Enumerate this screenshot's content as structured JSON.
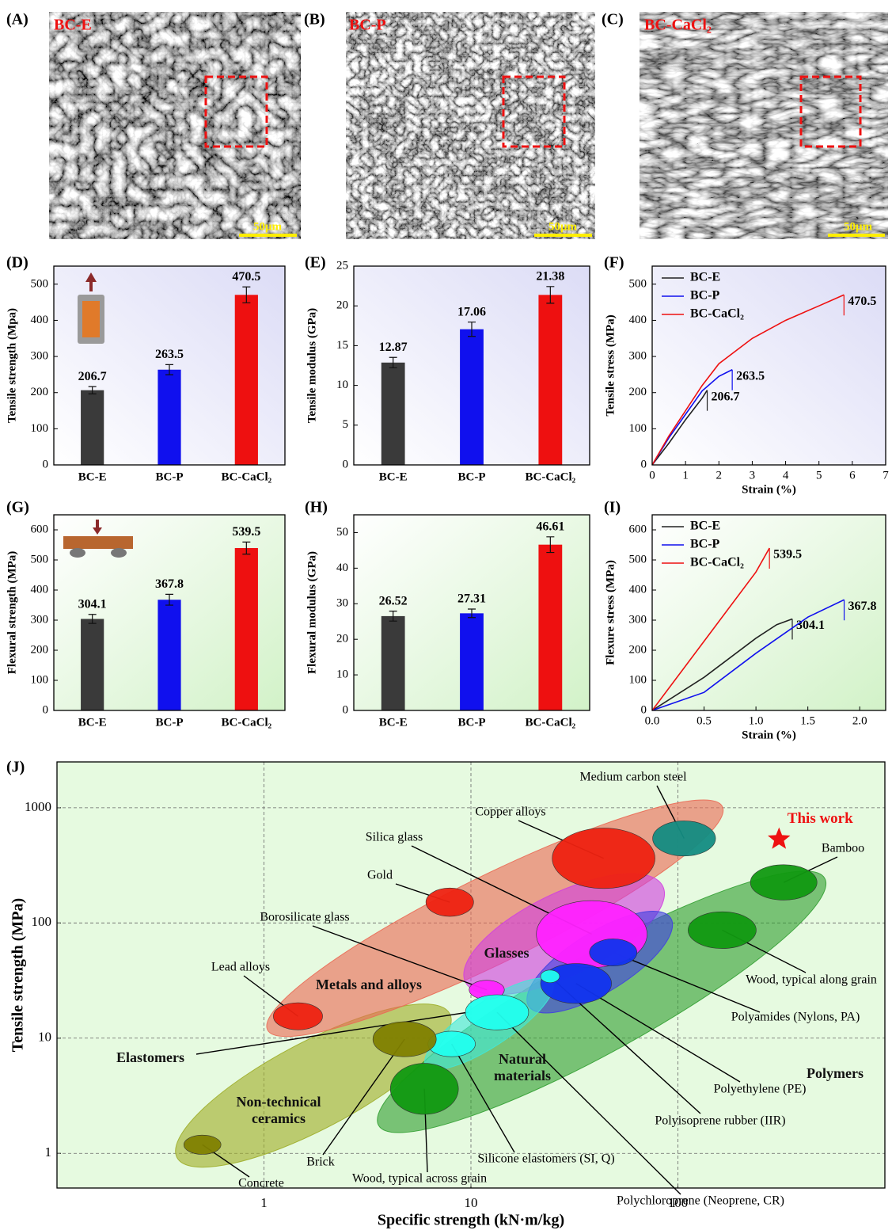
{
  "images": [
    {
      "panel": "(A)",
      "label": "BC-E",
      "scale_bar": "50μm"
    },
    {
      "panel": "(B)",
      "label": "BC-P",
      "scale_bar": "50μm"
    },
    {
      "panel": "(C)",
      "label": "BC-CaCl₂",
      "scale_bar": "50μm"
    }
  ],
  "chart_data": [
    {
      "type": "bar",
      "panel": "(D)",
      "ylabel": "Tensile strength (Mpa)",
      "categories": [
        "BC-E",
        "BC-P",
        "BC-CaCl₂"
      ],
      "values": [
        206.7,
        263.5,
        470.5
      ],
      "errors": [
        10,
        14,
        22
      ],
      "colors": [
        "#3a3a3a",
        "#1010ee",
        "#ee1010"
      ],
      "ylim": [
        0,
        550
      ],
      "yticks": [
        0,
        100,
        200,
        300,
        400,
        500
      ]
    },
    {
      "type": "bar",
      "panel": "(E)",
      "ylabel": "Tensile modulus (GPa)",
      "categories": [
        "BC-E",
        "BC-P",
        "BC-CaCl₂"
      ],
      "values": [
        12.87,
        17.06,
        21.38
      ],
      "errors": [
        0.65,
        0.9,
        1.05
      ],
      "colors": [
        "#3a3a3a",
        "#1010ee",
        "#ee1010"
      ],
      "ylim": [
        0,
        25
      ],
      "yticks": [
        0,
        5,
        10,
        15,
        20,
        25
      ]
    },
    {
      "type": "line",
      "panel": "(F)",
      "xlabel": "Strain (%)",
      "ylabel": "Tensile stress (MPa)",
      "xlim": [
        0,
        7
      ],
      "xticks": [
        0,
        1,
        2,
        3,
        4,
        5,
        6,
        7
      ],
      "ylim": [
        0,
        550
      ],
      "yticks": [
        0,
        100,
        200,
        300,
        400,
        500
      ],
      "legend": "upper left",
      "series": [
        {
          "name": "BC-E",
          "color": "#222222",
          "x": [
            0,
            0.5,
            1,
            1.5,
            1.65
          ],
          "values": [
            0,
            60,
            125,
            185,
            206.7
          ]
        },
        {
          "name": "BC-P",
          "color": "#1010ee",
          "x": [
            0,
            0.5,
            1,
            1.5,
            2,
            2.4
          ],
          "values": [
            0,
            75,
            140,
            205,
            245,
            263.5
          ]
        },
        {
          "name": "BC-CaCl₂",
          "color": "#ee1010",
          "x": [
            0,
            0.5,
            1,
            1.5,
            2,
            3,
            4,
            5,
            5.75
          ],
          "values": [
            0,
            80,
            150,
            220,
            280,
            350,
            400,
            440,
            470.5
          ]
        }
      ]
    },
    {
      "type": "bar",
      "panel": "(G)",
      "ylabel": "Flexural strength (MPa)",
      "categories": [
        "BC-E",
        "BC-P",
        "BC-CaCl₂"
      ],
      "values": [
        304.1,
        367.8,
        539.5
      ],
      "errors": [
        15,
        18,
        20
      ],
      "colors": [
        "#3a3a3a",
        "#1010ee",
        "#ee1010"
      ],
      "ylim": [
        0,
        650
      ],
      "yticks": [
        0,
        100,
        200,
        300,
        400,
        500,
        600
      ]
    },
    {
      "type": "bar",
      "panel": "(H)",
      "ylabel": "Flexural modulus (GPa)",
      "categories": [
        "BC-E",
        "BC-P",
        "BC-CaCl₂"
      ],
      "values": [
        26.52,
        27.31,
        46.61
      ],
      "errors": [
        1.4,
        1.2,
        2.2
      ],
      "colors": [
        "#3a3a3a",
        "#1010ee",
        "#ee1010"
      ],
      "ylim": [
        0,
        55
      ],
      "yticks": [
        0,
        10,
        20,
        30,
        40,
        50
      ]
    },
    {
      "type": "line",
      "panel": "(I)",
      "xlabel": "Strain (%)",
      "ylabel": "Flexure stress (MPa)",
      "xlim": [
        0,
        2.25
      ],
      "xticks": [
        {
          "value": 0,
          "label": "0.0"
        },
        0.5,
        {
          "value": 1,
          "label": "1.0"
        },
        1.5,
        {
          "value": 2,
          "label": "2.0"
        }
      ],
      "ylim": [
        0,
        650
      ],
      "yticks": [
        0,
        100,
        200,
        300,
        400,
        500,
        600
      ],
      "legend": "upper left",
      "series": [
        {
          "name": "BC-E",
          "color": "#222222",
          "x": [
            0,
            0.5,
            1,
            1.2,
            1.35
          ],
          "values": [
            0,
            110,
            240,
            285,
            304.1
          ]
        },
        {
          "name": "BC-P",
          "color": "#1010ee",
          "x": [
            0,
            0.5,
            1,
            1.5,
            1.85
          ],
          "values": [
            0,
            60,
            190,
            310,
            367.8
          ]
        },
        {
          "name": "BC-CaCl₂",
          "color": "#ee1010",
          "x": [
            0,
            0.5,
            1,
            1.13
          ],
          "values": [
            0,
            230,
            460,
            539.5
          ]
        }
      ]
    },
    {
      "type": "ashby",
      "panel": "(J)",
      "xlabel": "Specific strength (kN·m/kg)",
      "ylabel": "Tensile strength (MPa)",
      "xlim": [
        0.1,
        1000
      ],
      "xticks": [
        1,
        10,
        100
      ],
      "ylim": [
        0.5,
        2500
      ],
      "yticks": [
        1,
        10,
        100,
        1000
      ],
      "log_x": true,
      "log_y": true,
      "grid": true,
      "families": [
        {
          "name": "Non-technical ceramics",
          "color": "#9fae2a",
          "from": [
            0.38,
            0.92
          ],
          "to": [
            7.9,
            16.3
          ]
        },
        {
          "name": "Natural materials",
          "color": "#33a033",
          "from": [
            3.58,
            1.75
          ],
          "to": [
            512,
            244
          ]
        },
        {
          "name": "Metals and alloys",
          "color": "#ea6a55",
          "from": [
            1.04,
            11.8
          ],
          "to": [
            164,
            1024
          ]
        },
        {
          "name": "Glasses",
          "color": "#d040e0",
          "from": [
            9.4,
            30.7
          ],
          "to": [
            84.6,
            208
          ]
        },
        {
          "name": "Polymers",
          "color": "#4040e0",
          "from": [
            19,
            19
          ],
          "to": [
            92.4,
            110
          ]
        },
        {
          "name": "Elastomers",
          "color": "#40e8d8",
          "from": [
            6.06,
            5.77
          ],
          "to": [
            24.7,
            30.7
          ]
        }
      ],
      "materials": [
        {
          "name": "Medium carbon steel",
          "color": "#138c82",
          "x": [
            75.5,
            152
          ],
          "y": [
            381,
            769
          ]
        },
        {
          "name": "Copper alloys",
          "color": "#ee2211",
          "x": [
            24.7,
            77.5
          ],
          "y": [
            199,
            666
          ]
        },
        {
          "name": "Silica glass",
          "color": "#ff22ff",
          "x": [
            20.7,
            71
          ],
          "y": [
            41,
            156
          ]
        },
        {
          "name": "Gold",
          "color": "#ee2211",
          "x": [
            6.06,
            10.3
          ],
          "y": [
            114,
            201
          ]
        },
        {
          "name": "Borosilicate glass",
          "color": "#ff22ff",
          "x": [
            9.8,
            14.5
          ],
          "y": [
            21.7,
            31.8
          ]
        },
        {
          "name": "Lead alloys",
          "color": "#ee2211",
          "x": [
            1.11,
            1.92
          ],
          "y": [
            11.8,
            20.3
          ]
        },
        {
          "name": "Bamboo",
          "color": "#119911",
          "x": [
            224,
            470
          ],
          "y": [
            158,
            320
          ]
        },
        {
          "name": "Wood, typical along grain",
          "color": "#119911",
          "x": [
            112,
            239
          ],
          "y": [
            60,
            125
          ]
        },
        {
          "name": "Polyamides (Nylons, PA)",
          "color": "#1133ee",
          "x": [
            37.4,
            63.4
          ],
          "y": [
            42.3,
            72.7
          ]
        },
        {
          "name": "Polyethylene (PE)",
          "color": "#1133ee",
          "x": [
            21.7,
            47.8
          ],
          "y": [
            20,
            44.4
          ]
        },
        {
          "name": "Polyisoprene rubber (IIR)",
          "color": "#22ffee",
          "x": [
            21.7,
            26.8
          ],
          "y": [
            30.3,
            39
          ]
        },
        {
          "name": "Silicone elastomers (SI, Q)",
          "color": "#22ffee",
          "x": [
            6.2,
            10.5
          ],
          "y": [
            6.9,
            11.5
          ]
        },
        {
          "name": "Polychloroprene (Neoprene, CR)",
          "color": "#22ffee",
          "x": [
            9.4,
            19
          ],
          "y": [
            11.8,
            23.8
          ]
        },
        {
          "name": "Brick",
          "color": "#808000",
          "x": [
            3.36,
            6.8
          ],
          "y": [
            6.9,
            13.9
          ]
        },
        {
          "name": "Wood, typical across grain",
          "color": "#119911",
          "x": [
            4.08,
            8.7
          ],
          "y": [
            2.18,
            6.05
          ]
        },
        {
          "name": "Concrete",
          "color": "#808000",
          "x": [
            0.41,
            0.62
          ],
          "y": [
            0.98,
            1.44
          ]
        }
      ],
      "highlight": {
        "name": "This work",
        "color": "#ee1111",
        "x": 308,
        "y": 533
      }
    }
  ]
}
